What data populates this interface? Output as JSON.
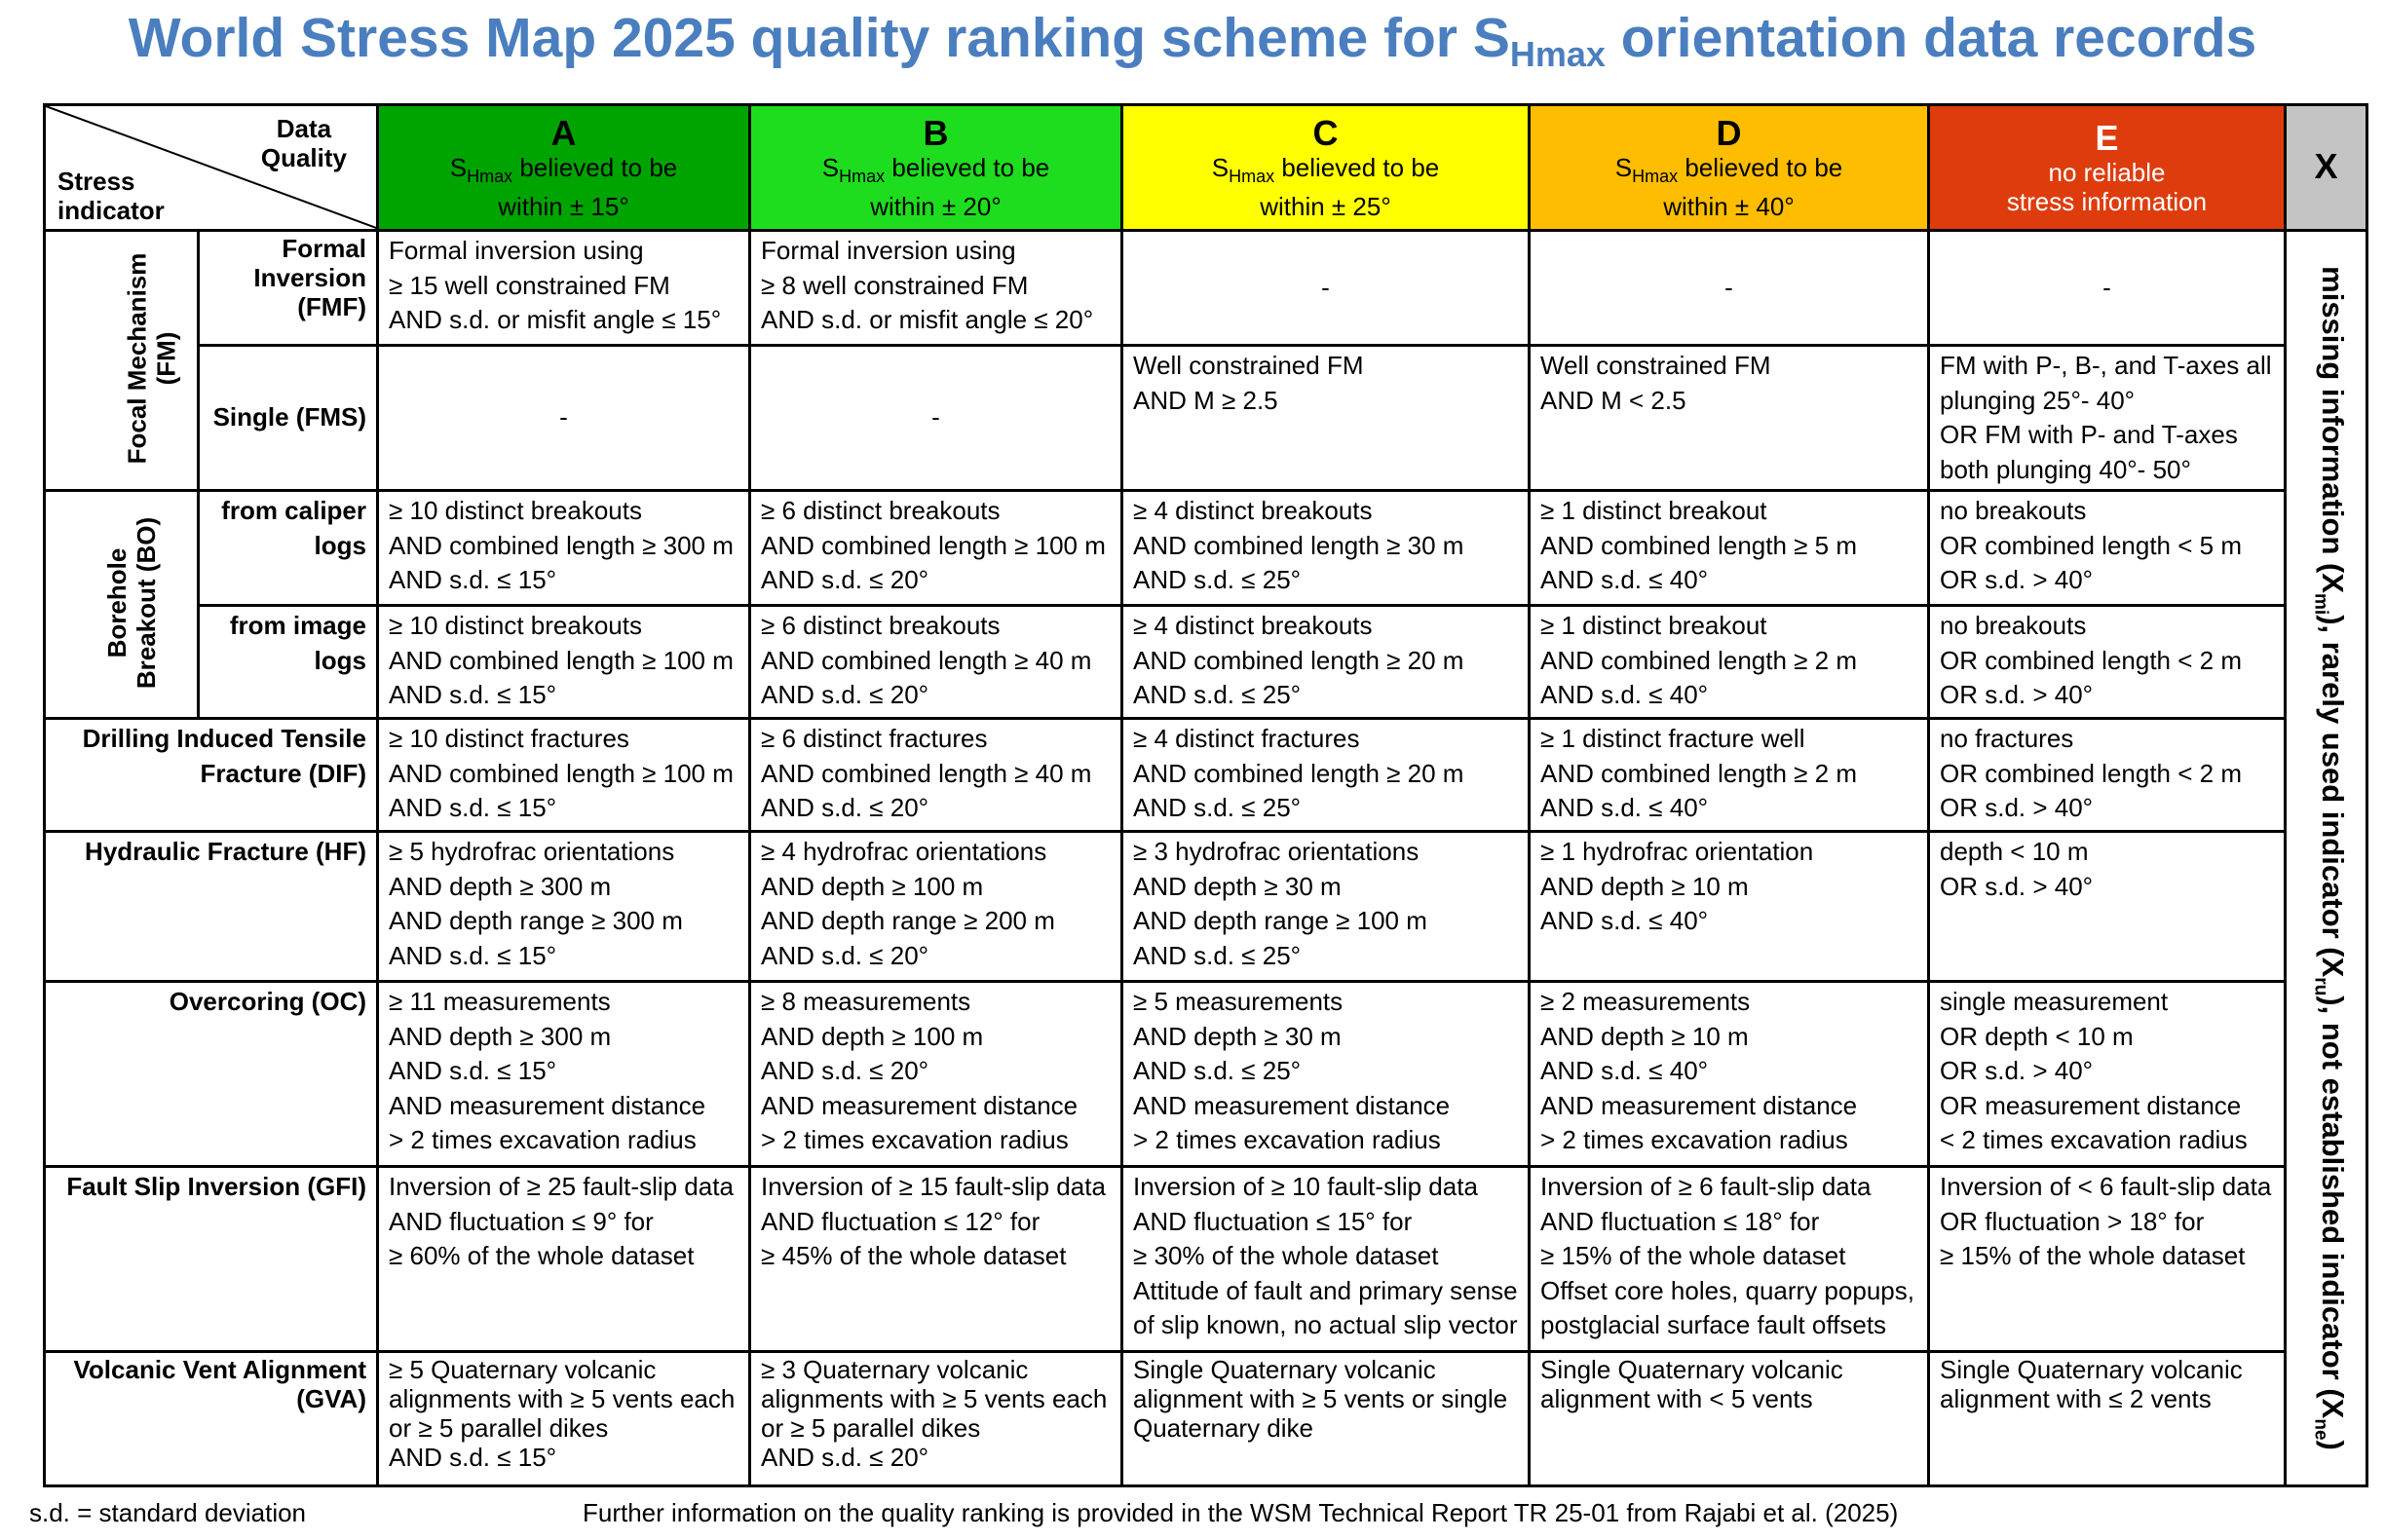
{
  "title": {
    "pre": "World Stress Map 2025 quality ranking scheme for S",
    "sub": "Hmax",
    "post": " orientation data records"
  },
  "corner": {
    "data_quality_1": "Data",
    "data_quality_2": "Quality",
    "stress_1": "Stress",
    "stress_2": "indicator"
  },
  "columns": [
    {
      "letter": "A",
      "l1_s": "S",
      "l1_sub": "Hmax",
      "l1_rest": " believed to be",
      "l2": "within ± 15°",
      "color": "#00a400"
    },
    {
      "letter": "B",
      "l1_s": "S",
      "l1_sub": "Hmax",
      "l1_rest": " believed to be",
      "l2": "within ± 20°",
      "color": "#1edd1e"
    },
    {
      "letter": "C",
      "l1_s": "S",
      "l1_sub": "Hmax",
      "l1_rest": " believed to be",
      "l2": "within ± 25°",
      "color": "#ffff00"
    },
    {
      "letter": "D",
      "l1_s": "S",
      "l1_sub": "Hmax",
      "l1_rest": " believed to be",
      "l2": "within ± 40°",
      "color": "#ffbd00"
    },
    {
      "letter": "E",
      "l1": "no reliable",
      "l2": "stress information",
      "color": "#de3c0d"
    }
  ],
  "x_column": {
    "letter": "X",
    "color": "#c4c4c4",
    "v1": "missing information (X",
    "v1s": "mi",
    "v2": "), rarely used indicator (X",
    "v2s": "ru",
    "v3": "), not established indicator (X",
    "v3s": "ne",
    "v4": ")"
  },
  "groups": {
    "fm": [
      "Focal Mechanism",
      "(FM)"
    ],
    "bo": [
      "Borehole",
      "Breakout (BO)"
    ]
  },
  "rows": [
    {
      "label": [
        "Formal",
        "Inversion",
        "(FMF)"
      ],
      "cells": [
        [
          "Formal inversion using",
          "≥ 15 well constrained FM",
          "AND s.d. or misfit angle ≤ 15°"
        ],
        [
          "Formal inversion using",
          "≥ 8 well constrained FM",
          "AND s.d. or misfit angle ≤ 20°"
        ],
        [
          "-"
        ],
        [
          "-"
        ],
        [
          "-"
        ]
      ]
    },
    {
      "label": [
        "Single (FMS)"
      ],
      "cells": [
        [
          "-"
        ],
        [
          "-"
        ],
        [
          "Well constrained FM",
          "AND M ≥ 2.5"
        ],
        [
          "Well constrained FM",
          "AND M < 2.5"
        ],
        [
          "FM with P-, B-, and T-axes all",
          "plunging 25°- 40°",
          "OR FM with P- and T-axes",
          "both plunging 40°- 50°"
        ]
      ]
    },
    {
      "label": [
        "from caliper",
        "logs"
      ],
      "cells": [
        [
          "≥ 10 distinct breakouts",
          "AND combined length ≥ 300 m",
          "AND s.d. ≤ 15°"
        ],
        [
          "≥ 6 distinct breakouts",
          "AND combined length ≥ 100 m",
          "AND s.d. ≤ 20°"
        ],
        [
          "≥ 4 distinct breakouts",
          "AND combined length ≥ 30 m",
          "AND s.d. ≤ 25°"
        ],
        [
          "≥ 1 distinct breakout",
          "AND combined length ≥ 5 m",
          "AND s.d. ≤ 40°"
        ],
        [
          "no breakouts",
          "OR combined length < 5 m",
          "OR s.d. > 40°"
        ]
      ]
    },
    {
      "label": [
        "from image",
        "logs"
      ],
      "cells": [
        [
          "≥ 10 distinct breakouts",
          "AND combined length ≥ 100 m",
          "AND s.d. ≤ 15°"
        ],
        [
          "≥ 6 distinct breakouts",
          "AND combined length ≥ 40 m",
          "AND s.d. ≤ 20°"
        ],
        [
          "≥ 4 distinct breakouts",
          "AND combined length ≥ 20 m",
          "AND s.d. ≤ 25°"
        ],
        [
          "≥ 1 distinct breakout",
          "AND combined length ≥ 2 m",
          "AND s.d. ≤ 40°"
        ],
        [
          "no breakouts",
          "OR combined length < 2 m",
          "OR s.d. > 40°"
        ]
      ]
    },
    {
      "label": [
        "Drilling Induced Tensile",
        "Fracture (DIF)"
      ],
      "cells": [
        [
          "≥ 10 distinct fractures",
          "AND combined length ≥ 100 m",
          "AND s.d. ≤ 15°"
        ],
        [
          "≥ 6 distinct fractures",
          "AND combined length ≥ 40 m",
          "AND s.d. ≤ 20°"
        ],
        [
          "≥ 4 distinct fractures",
          "AND combined length ≥ 20 m",
          "AND s.d. ≤ 25°"
        ],
        [
          "≥ 1 distinct fracture well",
          "AND combined length ≥ 2 m",
          "AND s.d. ≤ 40°"
        ],
        [
          "no fractures",
          "OR combined length < 2 m",
          "OR s.d. > 40°"
        ]
      ]
    },
    {
      "label": [
        "Hydraulic Fracture (HF)"
      ],
      "cells": [
        [
          "≥ 5 hydrofrac orientations",
          "AND depth ≥ 300 m",
          "AND depth range ≥ 300 m",
          "AND s.d. ≤ 15°"
        ],
        [
          "≥ 4 hydrofrac orientations",
          "AND depth ≥ 100 m",
          "AND depth range ≥ 200 m",
          "AND s.d. ≤ 20°"
        ],
        [
          "≥ 3 hydrofrac orientations",
          "AND depth ≥ 30 m",
          "AND depth range ≥ 100 m",
          "AND s.d. ≤ 25°"
        ],
        [
          "≥ 1 hydrofrac orientation",
          "AND depth ≥ 10 m",
          "AND s.d. ≤ 40°"
        ],
        [
          "depth < 10 m",
          "OR s.d. > 40°"
        ]
      ]
    },
    {
      "label": [
        "Overcoring (OC)"
      ],
      "cells": [
        [
          "≥ 11 measurements",
          "AND depth ≥ 300 m",
          "AND s.d. ≤ 15°",
          "AND measurement distance",
          "> 2 times excavation radius"
        ],
        [
          "≥ 8 measurements",
          "AND depth ≥ 100 m",
          "AND s.d. ≤ 20°",
          "AND measurement distance",
          "> 2 times excavation radius"
        ],
        [
          "≥ 5 measurements",
          "AND depth ≥ 30 m",
          "AND s.d. ≤ 25°",
          "AND measurement distance",
          "> 2 times excavation radius"
        ],
        [
          "≥ 2 measurements",
          "AND depth ≥ 10 m",
          "AND s.d. ≤ 40°",
          "AND measurement distance",
          "> 2 times excavation radius"
        ],
        [
          "single measurement",
          "OR depth < 10 m",
          "OR s.d. > 40°",
          "OR measurement distance",
          "< 2 times excavation radius"
        ]
      ]
    },
    {
      "label": [
        "Fault Slip Inversion (GFI)"
      ],
      "cells": [
        [
          "Inversion of ≥ 25 fault-slip data",
          "AND fluctuation ≤ 9° for",
          "≥ 60% of the whole dataset"
        ],
        [
          "Inversion of ≥ 15 fault-slip data",
          "AND fluctuation ≤ 12° for",
          "≥ 45% of the whole dataset"
        ],
        [
          "Inversion of ≥ 10 fault-slip data",
          "AND fluctuation ≤ 15° for",
          "≥ 30% of the whole dataset",
          "Attitude of fault and primary sense",
          "of slip known, no actual slip vector"
        ],
        [
          "Inversion of ≥ 6 fault-slip data",
          "AND fluctuation ≤ 18° for",
          "≥ 15% of the whole dataset",
          "Offset core holes, quarry popups,",
          "postglacial surface fault offsets"
        ],
        [
          "Inversion of < 6 fault-slip data",
          "OR fluctuation > 18° for",
          "≥ 15% of the whole dataset"
        ]
      ]
    },
    {
      "label": [
        "Volcanic Vent Alignment",
        "(GVA)"
      ],
      "cells": [
        [
          "≥ 5 Quaternary volcanic",
          "alignments with ≥ 5 vents each",
          "or ≥ 5 parallel dikes",
          "AND s.d. ≤ 15°"
        ],
        [
          "≥ 3 Quaternary volcanic",
          "alignments with ≥ 5 vents each",
          "or ≥ 5 parallel dikes",
          "AND s.d. ≤ 20°"
        ],
        [
          "Single Quaternary volcanic",
          "alignment with ≥ 5 vents or single",
          "Quaternary dike"
        ],
        [
          "Single Quaternary volcanic",
          "alignment with < 5 vents"
        ],
        [
          "Single Quaternary volcanic",
          "alignment with ≤ 2 vents"
        ]
      ]
    }
  ],
  "footer": {
    "left": "s.d. = standard deviation",
    "right": "Further information on the quality ranking is provided in the WSM Technical Report TR 25-01 from Rajabi et al. (2025)"
  }
}
